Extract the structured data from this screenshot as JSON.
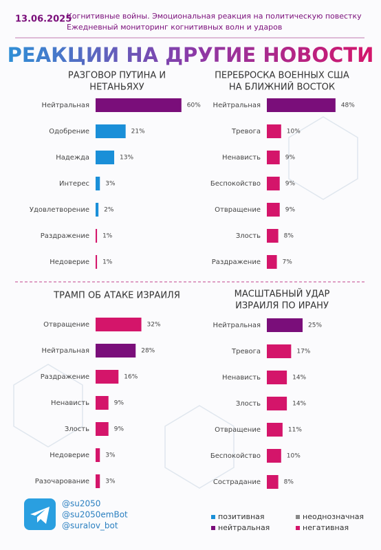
{
  "header": {
    "date": "13.06.2025",
    "subtitle": [
      "Когнитивные войны. Эмоциональная реакция на политическую повестку",
      "Ежедневный мониторинг когнитивных волн и ударов"
    ],
    "title": "РЕАКЦИИ НА ДРУГИЕ НОВОСТИ"
  },
  "chart_data": [
    {
      "type": "bar",
      "title": [
        "РАЗГОВОР ПУТИНА И",
        "НЕТАНЬЯХУ"
      ],
      "categories": [
        "Нейтральная",
        "Одобрение",
        "Надежда",
        "Интерес",
        "Удовлетворение",
        "Раздражение",
        "Недоверие"
      ],
      "values": [
        60,
        21,
        13,
        3,
        2,
        1,
        1
      ],
      "value_labels": [
        "60%",
        "21%",
        "13%",
        "3%",
        "2%",
        "1%",
        "1%"
      ],
      "colors": [
        "#7a0e7a",
        "#1a8fd8",
        "#1a8fd8",
        "#1a8fd8",
        "#1a8fd8",
        "#d4156a",
        "#d4156a"
      ]
    },
    {
      "type": "bar",
      "title": [
        "ПЕРЕБРОСКА ВОЕННЫХ США",
        "НА БЛИЖНИЙ ВОСТОК"
      ],
      "categories": [
        "Нейтральная",
        "Тревога",
        "Ненависть",
        "Беспокойство",
        "Отвращение",
        "Злость",
        "Раздражение"
      ],
      "values": [
        48,
        10,
        9,
        9,
        9,
        8,
        7
      ],
      "value_labels": [
        "48%",
        "10%",
        "9%",
        "9%",
        "9%",
        "8%",
        "7%"
      ],
      "colors": [
        "#7a0e7a",
        "#d4156a",
        "#d4156a",
        "#d4156a",
        "#d4156a",
        "#d4156a",
        "#d4156a"
      ]
    },
    {
      "type": "bar",
      "title": [
        "ТРАМП ОБ АТАКЕ ИЗРАИЛЯ"
      ],
      "categories": [
        "Отвращение",
        "Нейтральная",
        "Раздражение",
        "Ненависть",
        "Злость",
        "Недоверие",
        "Разочарование"
      ],
      "values": [
        32,
        28,
        16,
        9,
        9,
        3,
        3
      ],
      "value_labels": [
        "32%",
        "28%",
        "16%",
        "9%",
        "9%",
        "3%",
        "3%"
      ],
      "colors": [
        "#d4156a",
        "#7a0e7a",
        "#d4156a",
        "#d4156a",
        "#d4156a",
        "#d4156a",
        "#d4156a"
      ]
    },
    {
      "type": "bar",
      "title": [
        "МАСШТАБНЫЙ УДАР",
        "ИЗРАИЛЯ ПО ИРАНУ"
      ],
      "categories": [
        "Нейтральная",
        "Тревога",
        "Ненависть",
        "Злость",
        "Отвращение",
        "Беспокойство",
        "Сострадание"
      ],
      "values": [
        25,
        17,
        14,
        14,
        11,
        10,
        8
      ],
      "value_labels": [
        "25%",
        "17%",
        "14%",
        "14%",
        "11%",
        "10%",
        "8%"
      ],
      "colors": [
        "#7a0e7a",
        "#d4156a",
        "#d4156a",
        "#d4156a",
        "#d4156a",
        "#d4156a",
        "#d4156a"
      ]
    }
  ],
  "footer": {
    "handles": [
      "@su2050",
      "@su2050emBot",
      "@suralov_bot"
    ]
  },
  "legend": [
    {
      "name": "позитивная",
      "color": "#1a8fd8"
    },
    {
      "name": "неоднозначная",
      "color": "#888888"
    },
    {
      "name": "нейтральная",
      "color": "#7a0e7a"
    },
    {
      "name": "негативная",
      "color": "#d4156a"
    }
  ]
}
